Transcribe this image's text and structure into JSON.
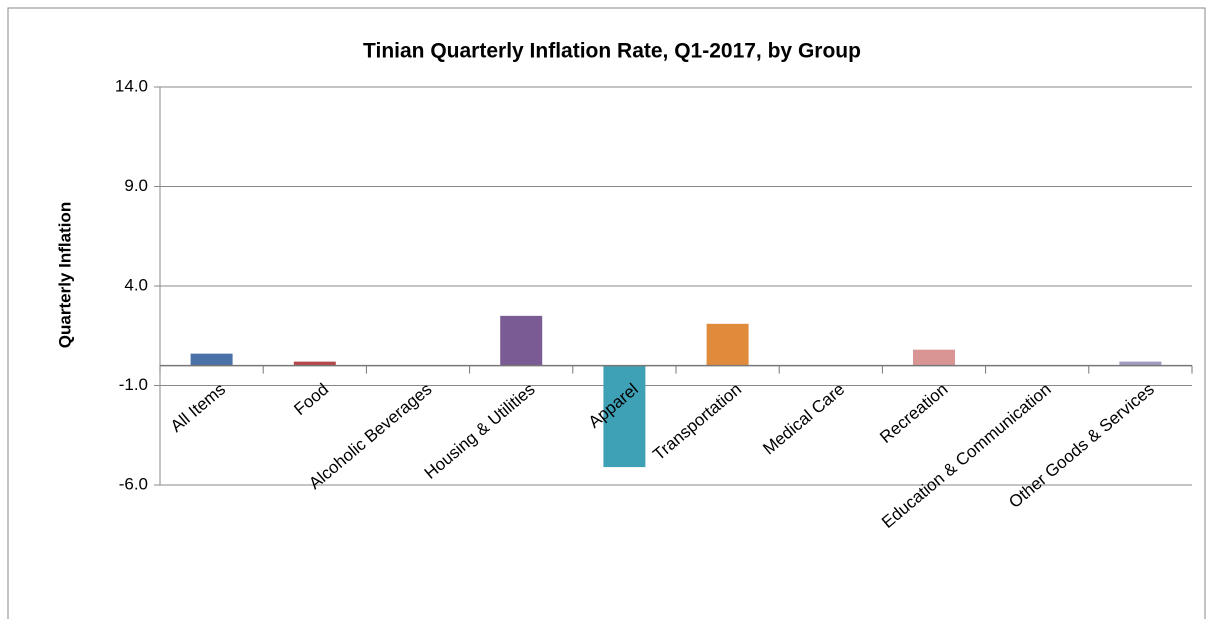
{
  "chart_data": {
    "type": "bar",
    "title": "Tinian Quarterly Inflation Rate, Q1-2017, by Group",
    "y_label": "Quarterly Inflation",
    "categories": [
      "All Items",
      "Food",
      "Alcoholic Beverages",
      "Housing & Utilities",
      "Apparel",
      "Transportation",
      "Medical Care",
      "Recreation",
      "Education & Communication",
      "Other Goods & Services"
    ],
    "values": [
      0.6,
      0.2,
      0,
      2.5,
      -5.1,
      2.1,
      0,
      0.8,
      0,
      0.2
    ],
    "colors": [
      "#4a72a8",
      "#b5494a",
      "#8fa84f",
      "#7b5b94",
      "#3fa1b6",
      "#e08a3c",
      "#8aa2c8",
      "#d99594",
      "#b8c98a",
      "#a09cc1"
    ],
    "ylim": [
      -6,
      14
    ],
    "yticks": [
      {
        "value": -6,
        "label": "-6.0"
      },
      {
        "value": -1,
        "label": "-1.0"
      },
      {
        "value": 4,
        "label": "4.0"
      },
      {
        "value": 9,
        "label": "9.0"
      },
      {
        "value": 14,
        "label": "14.0"
      }
    ],
    "grid": true
  }
}
